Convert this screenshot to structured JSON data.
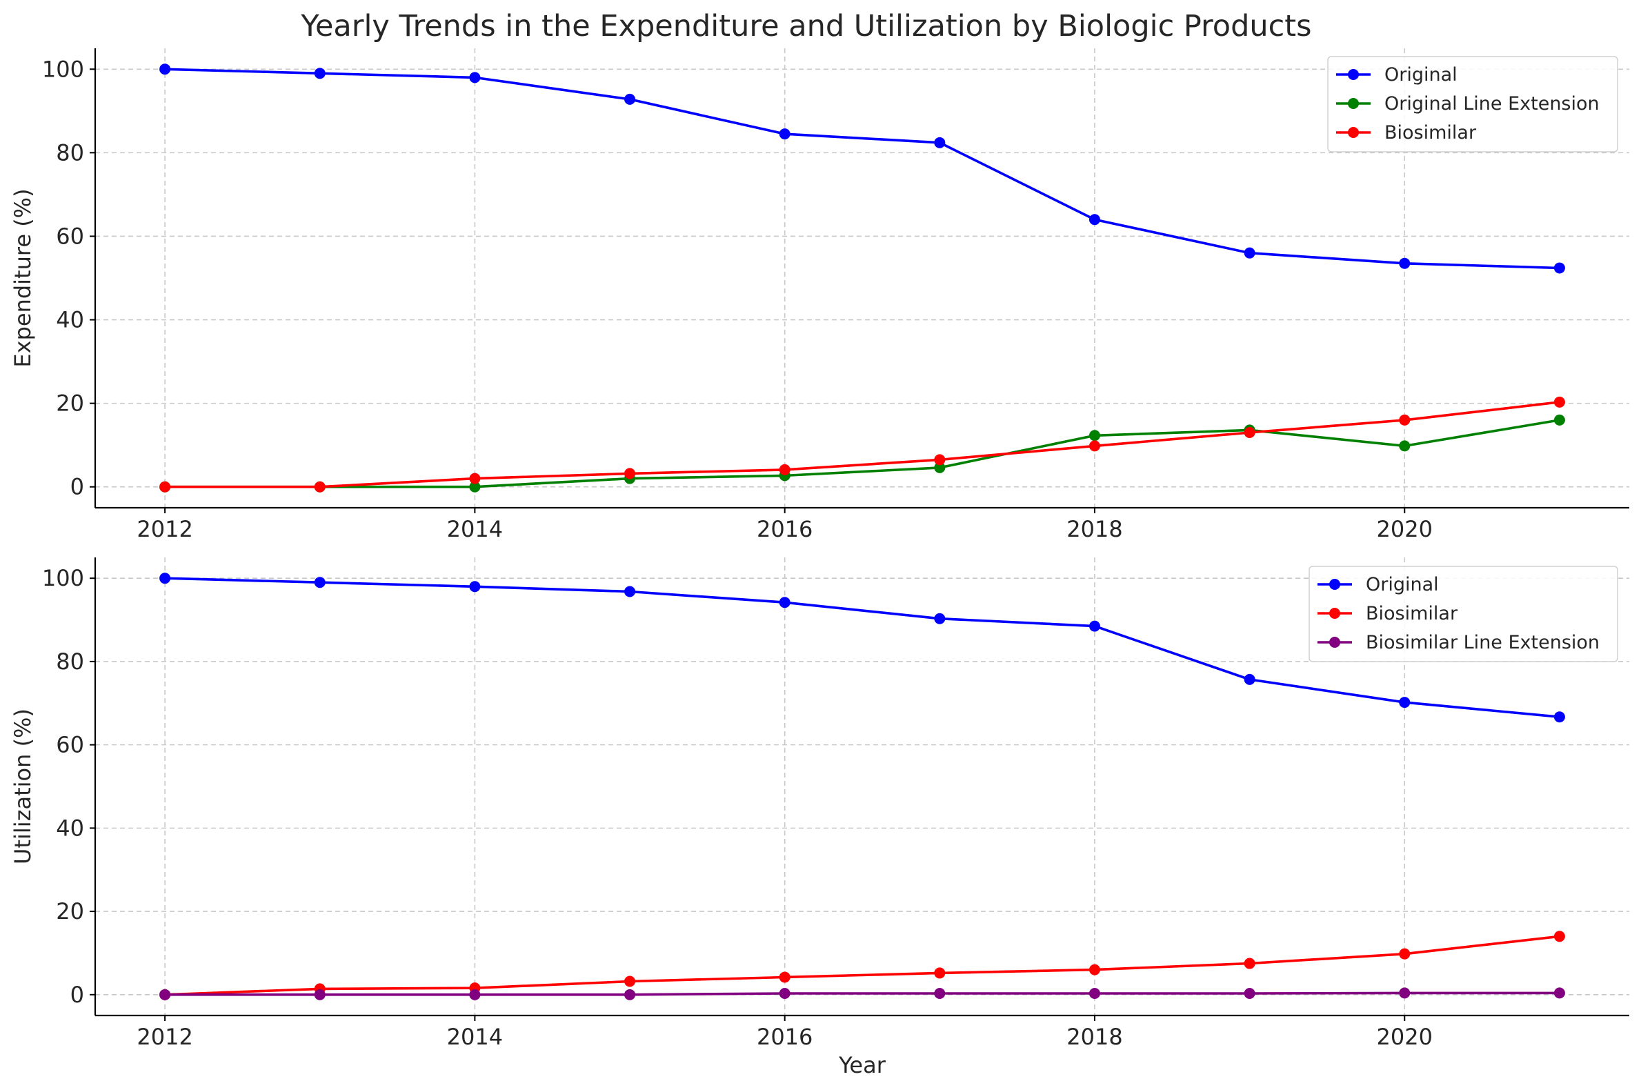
{
  "chart_data": [
    {
      "type": "line",
      "title": "Yearly Trends in the Expenditure and Utilization by Biologic Products",
      "xlabel": "",
      "ylabel": "Expenditure (%)",
      "x": [
        2012,
        2013,
        2014,
        2015,
        2016,
        2017,
        2018,
        2019,
        2020,
        2021
      ],
      "xticks": [
        "2012",
        "2014",
        "2016",
        "2018",
        "2020"
      ],
      "yticks": [
        "0",
        "20",
        "40",
        "60",
        "80",
        "100"
      ],
      "xlim": [
        2011.55,
        2021.45
      ],
      "ylim": [
        -5,
        105
      ],
      "grid": true,
      "legend_position": "top-right",
      "series": [
        {
          "name": "Original",
          "color": "#0000ff",
          "values": [
            100,
            99,
            98,
            92.8,
            84.5,
            82.4,
            64,
            56,
            53.5,
            52.4
          ]
        },
        {
          "name": "Original Line Extension",
          "color": "#008000",
          "values": [
            0,
            0,
            0,
            2,
            2.7,
            4.6,
            12.3,
            13.6,
            9.8,
            16
          ]
        },
        {
          "name": "Biosimilar",
          "color": "#ff0000",
          "values": [
            0,
            0,
            2,
            3.2,
            4.1,
            6.5,
            9.8,
            13,
            16,
            20.3
          ]
        }
      ]
    },
    {
      "type": "line",
      "title": "",
      "xlabel": "Year",
      "ylabel": "Utilization (%)",
      "x": [
        2012,
        2013,
        2014,
        2015,
        2016,
        2017,
        2018,
        2019,
        2020,
        2021
      ],
      "xticks": [
        "2012",
        "2014",
        "2016",
        "2018",
        "2020"
      ],
      "yticks": [
        "0",
        "20",
        "40",
        "60",
        "80",
        "100"
      ],
      "xlim": [
        2011.55,
        2021.45
      ],
      "ylim": [
        -5,
        105
      ],
      "grid": true,
      "legend_position": "top-right",
      "series": [
        {
          "name": "Original",
          "color": "#0000ff",
          "values": [
            100,
            99,
            98,
            96.8,
            94.2,
            90.3,
            88.5,
            75.7,
            70.2,
            66.7
          ]
        },
        {
          "name": "Biosimilar",
          "color": "#ff0000",
          "values": [
            0,
            1.4,
            1.6,
            3.2,
            4.2,
            5.2,
            6,
            7.5,
            9.8,
            14
          ]
        },
        {
          "name": "Biosimilar Line Extension",
          "color": "#800080",
          "values": [
            0,
            0,
            0,
            0,
            0.3,
            0.3,
            0.3,
            0.3,
            0.4,
            0.4
          ]
        }
      ]
    }
  ]
}
